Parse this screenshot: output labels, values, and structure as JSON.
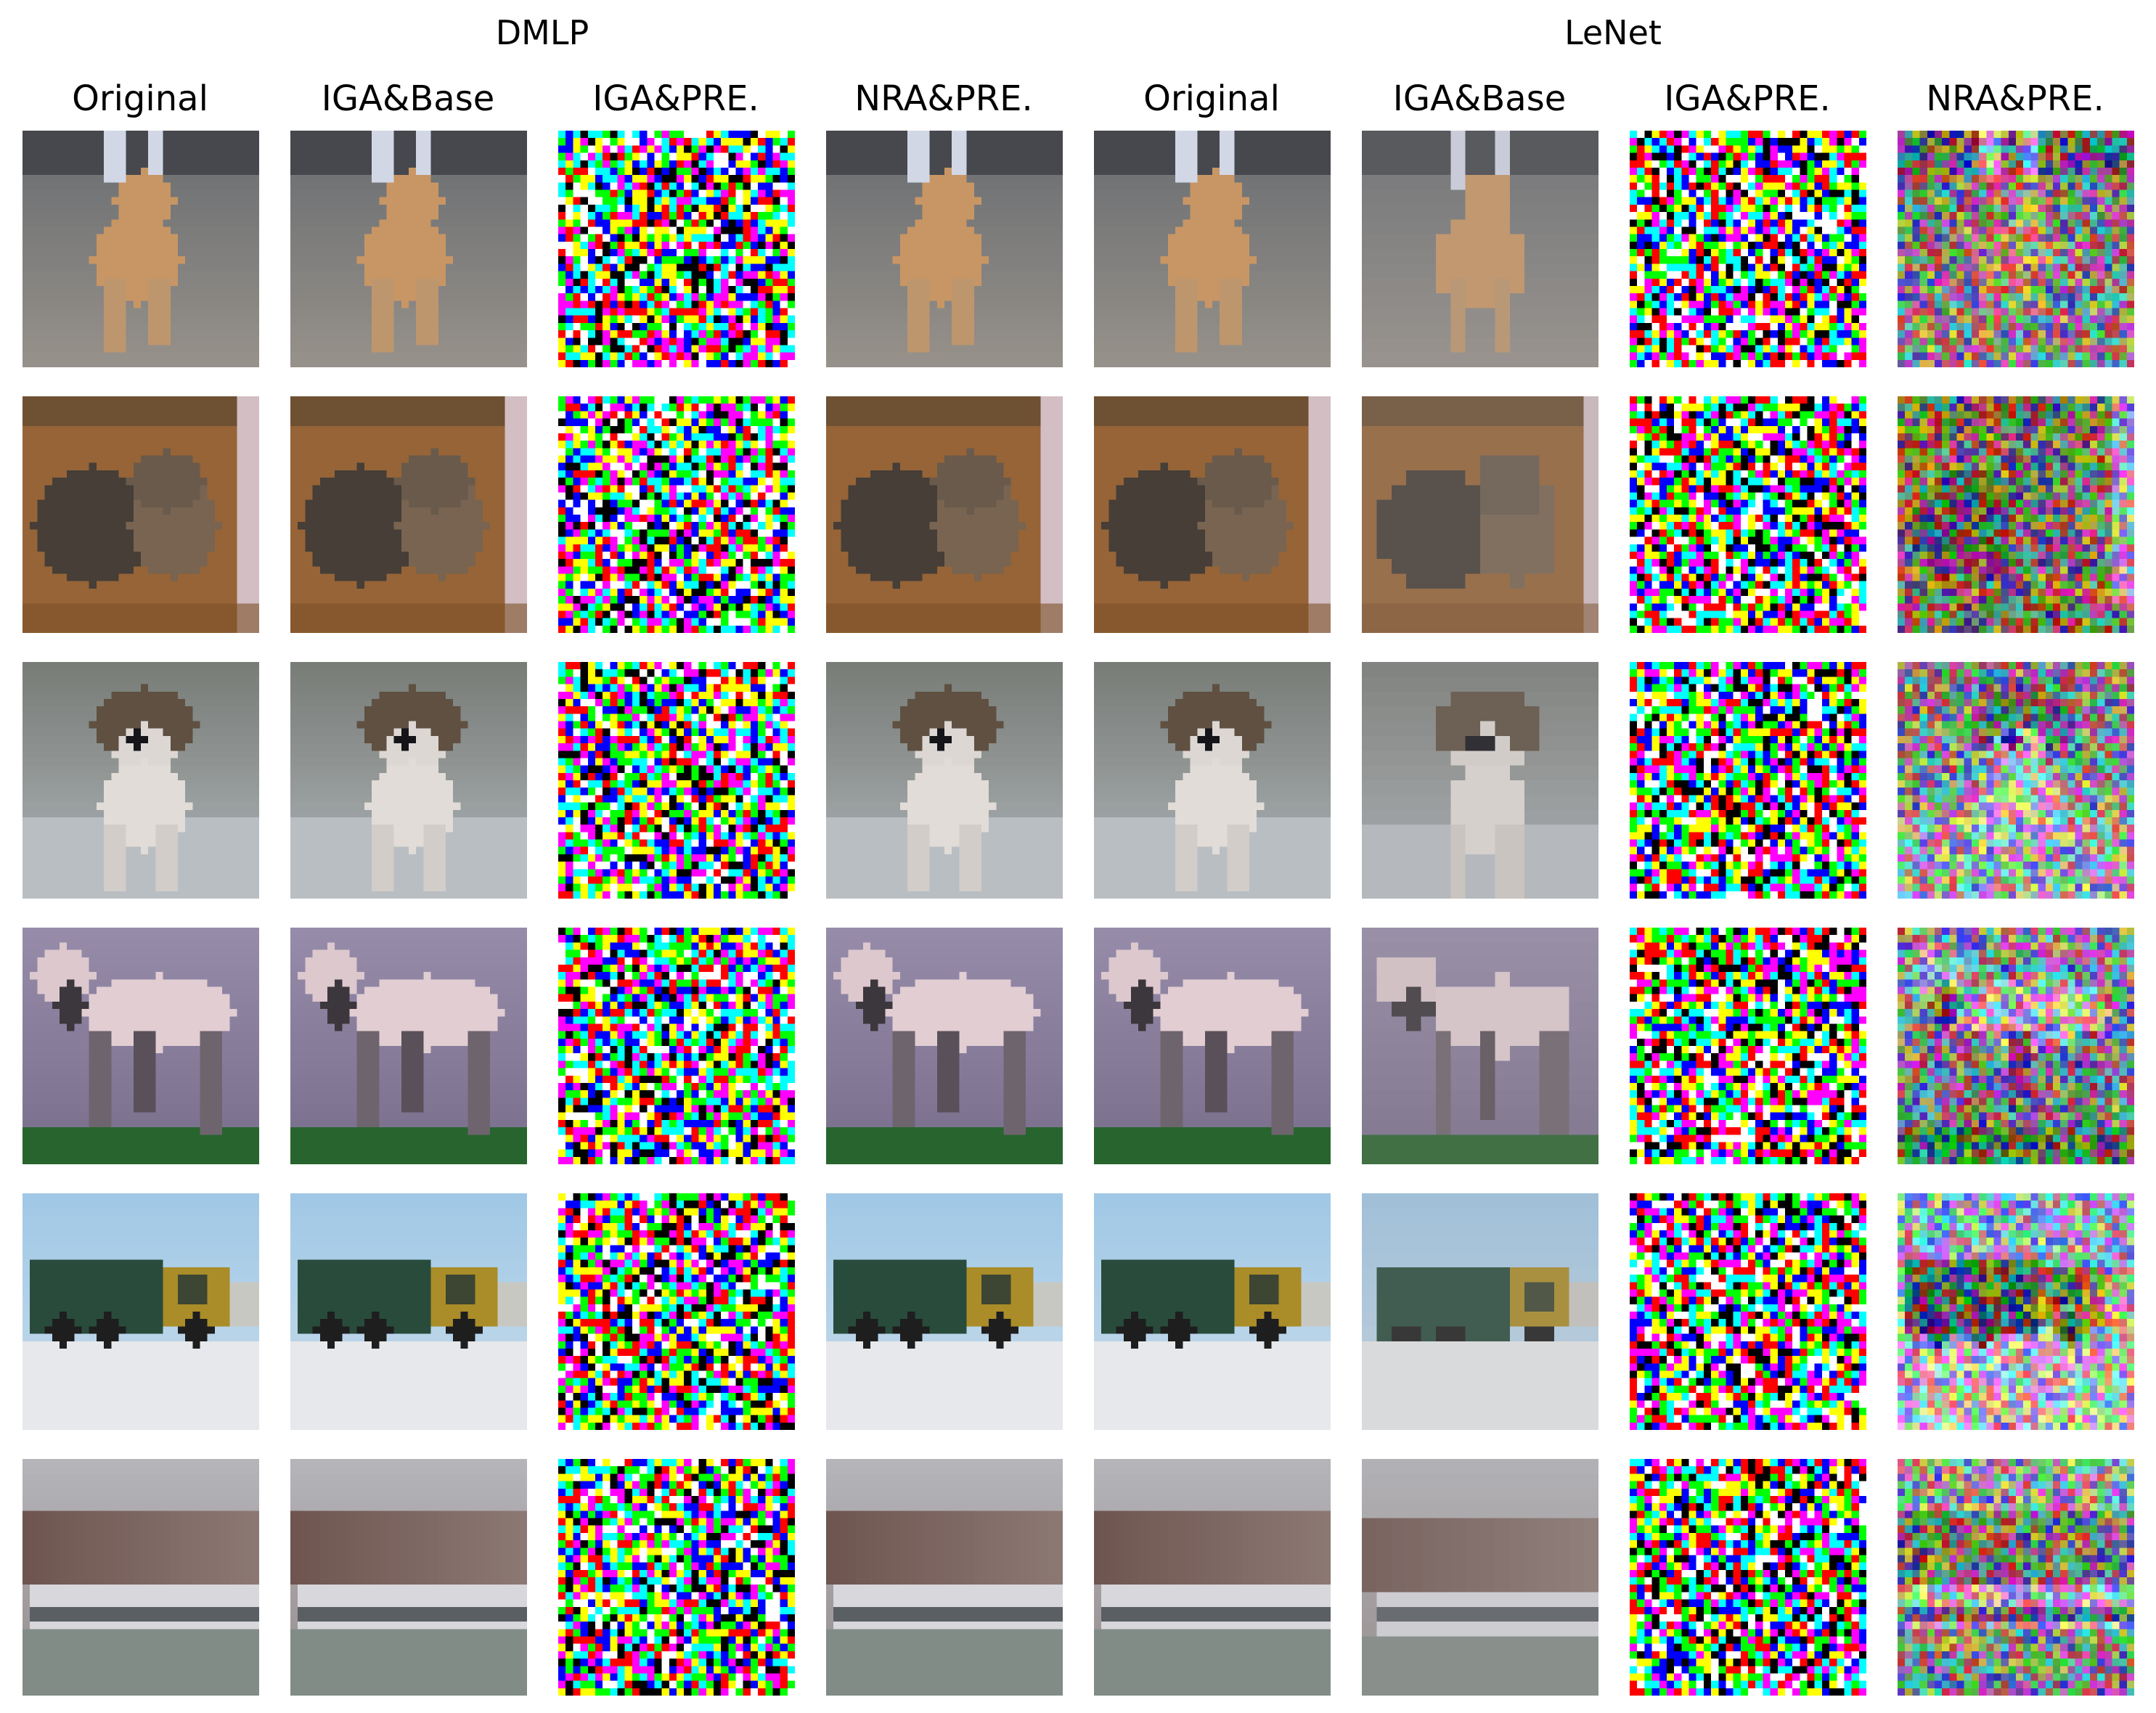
{
  "groups": [
    {
      "title": "DMLP"
    },
    {
      "title": "LeNet"
    }
  ],
  "columns": [
    {
      "label": "Original"
    },
    {
      "label": "IGA&Base"
    },
    {
      "label": "IGA&PRE."
    },
    {
      "label": "NRA&PRE."
    },
    {
      "label": "Original"
    },
    {
      "label": "IGA&Base"
    },
    {
      "label": "IGA&PRE."
    },
    {
      "label": "NRA&PRE."
    }
  ],
  "rows": [
    {
      "subject": "dog-standing"
    },
    {
      "subject": "cat"
    },
    {
      "subject": "dog-white"
    },
    {
      "subject": "horse"
    },
    {
      "subject": "truck"
    },
    {
      "subject": "boat"
    }
  ],
  "cell_types": [
    "original",
    "base",
    "noise",
    "original",
    "original",
    "blurred",
    "noise",
    "reconstruction"
  ]
}
